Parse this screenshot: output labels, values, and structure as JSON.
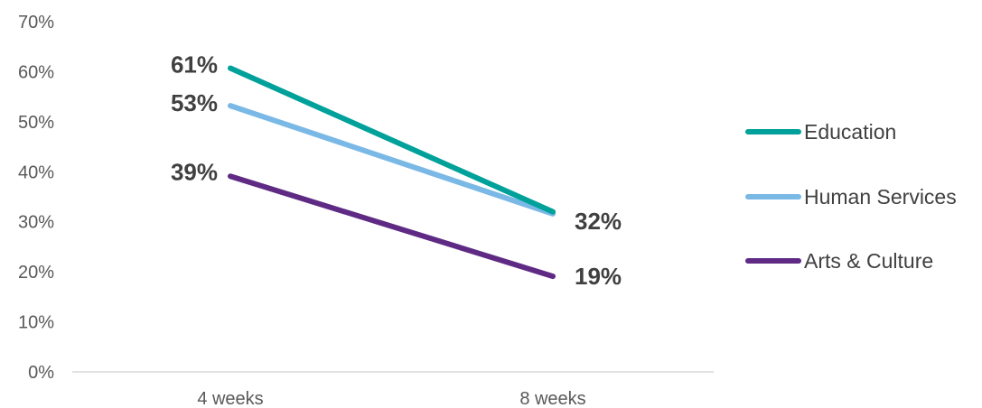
{
  "chart_data": {
    "type": "line",
    "categories": [
      "4 weeks",
      "8 weeks"
    ],
    "ylim": [
      0,
      70
    ],
    "yticks": [
      0,
      10,
      20,
      30,
      40,
      50,
      60,
      70
    ],
    "ytick_labels": [
      "0%",
      "10%",
      "20%",
      "30%",
      "40%",
      "50%",
      "60%",
      "70%"
    ],
    "legend_position": "right",
    "grid": false,
    "series": [
      {
        "name": "Education",
        "color": "#00a19a",
        "values": [
          60.7,
          32
        ],
        "labels": [
          "61%",
          ""
        ]
      },
      {
        "name": "Human Services",
        "color": "#7ab8e6",
        "values": [
          53.2,
          31.6
        ],
        "labels": [
          "53%",
          "32%"
        ]
      },
      {
        "name": "Arts & Culture",
        "color": "#5e2a84",
        "values": [
          39.1,
          19.1
        ],
        "labels": [
          "39%",
          "19%"
        ]
      }
    ]
  }
}
